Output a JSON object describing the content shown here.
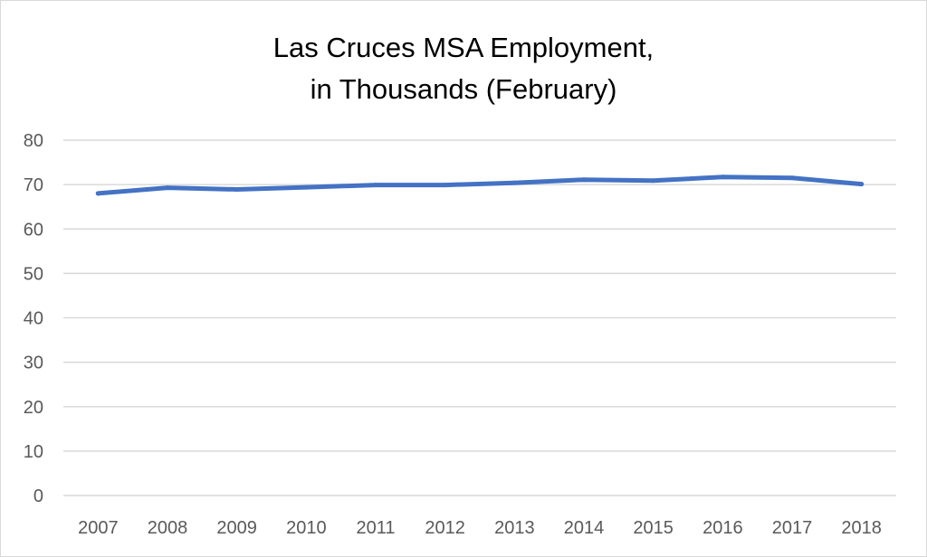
{
  "chart_data": {
    "type": "line",
    "title_lines": [
      "Las Cruces MSA Employment,",
      "in Thousands (February)"
    ],
    "xlabel": "",
    "ylabel": "",
    "categories": [
      "2007",
      "2008",
      "2009",
      "2010",
      "2011",
      "2012",
      "2013",
      "2014",
      "2015",
      "2016",
      "2017",
      "2018"
    ],
    "series": [
      {
        "values": [
          68.0,
          69.3,
          68.9,
          69.4,
          69.9,
          69.9,
          70.4,
          71.1,
          70.9,
          71.7,
          71.5,
          70.1
        ],
        "color": "#4472c4"
      }
    ],
    "ylim": [
      0,
      80
    ],
    "yticks": [
      "0",
      "10",
      "20",
      "30",
      "40",
      "50",
      "60",
      "70",
      "80"
    ],
    "grid": true,
    "gridline_color": "#d9d9d9",
    "legend": "none"
  }
}
